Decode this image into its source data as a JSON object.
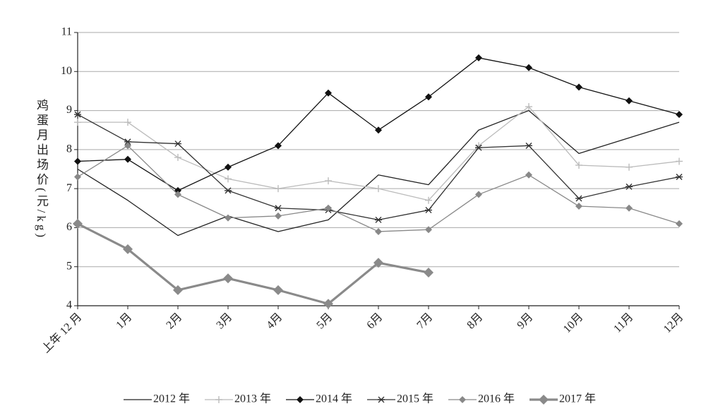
{
  "chart_data": {
    "type": "line",
    "ylabel": "鸡蛋月出场价(元/kg)",
    "categories": [
      "上年 12 月",
      "1月",
      "2月",
      "3月",
      "4月",
      "5月",
      "6月",
      "7月",
      "8月",
      "9月",
      "10月",
      "11月",
      "12月"
    ],
    "ylim": [
      4,
      11
    ],
    "yticks": [
      4,
      5,
      6,
      7,
      8,
      9,
      10,
      11
    ],
    "grid": true,
    "legend": "bottom",
    "series": [
      {
        "name": "2012 年",
        "color": "#222222",
        "marker": "none",
        "width": 1.3,
        "values": [
          7.5,
          6.7,
          5.8,
          6.3,
          5.9,
          6.2,
          7.35,
          7.1,
          8.5,
          9.0,
          7.9,
          8.3,
          8.7
        ]
      },
      {
        "name": "2013 年",
        "color": "#bbbbbb",
        "marker": "plus",
        "width": 1.3,
        "values": [
          8.7,
          8.7,
          7.8,
          7.25,
          7.0,
          7.2,
          7.0,
          6.7,
          8.1,
          9.1,
          7.6,
          7.55,
          7.7
        ]
      },
      {
        "name": "2014 年",
        "color": "#111111",
        "marker": "diamond",
        "width": 1.3,
        "values": [
          7.7,
          7.75,
          6.95,
          7.55,
          8.1,
          9.45,
          8.5,
          9.35,
          10.35,
          10.1,
          9.6,
          9.25,
          8.9
        ]
      },
      {
        "name": "2015 年",
        "color": "#333333",
        "marker": "star",
        "width": 1.3,
        "values": [
          8.9,
          8.2,
          8.15,
          6.95,
          6.5,
          6.45,
          6.2,
          6.45,
          8.05,
          8.1,
          6.75,
          7.05,
          7.3
        ]
      },
      {
        "name": "2016 年",
        "color": "#888888",
        "marker": "diamond",
        "width": 1.3,
        "values": [
          7.3,
          8.1,
          6.85,
          6.25,
          6.3,
          6.5,
          5.9,
          5.95,
          6.85,
          7.35,
          6.55,
          6.5,
          6.1
        ]
      },
      {
        "name": "2017 年",
        "color": "#8a8a8a",
        "marker": "diamond-big",
        "width": 3.2,
        "values": [
          6.1,
          5.45,
          4.4,
          4.7,
          4.4,
          4.05,
          5.1,
          4.85,
          null,
          null,
          null,
          null,
          null
        ]
      }
    ]
  }
}
